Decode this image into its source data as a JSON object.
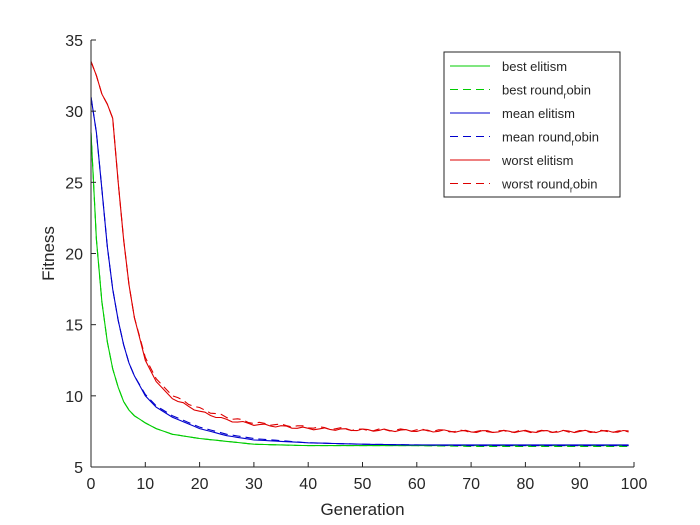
{
  "chart_data": {
    "type": "line",
    "title": "",
    "xlabel": "Generation",
    "ylabel": "Fitness",
    "xlim": [
      0,
      100
    ],
    "ylim": [
      5,
      35
    ],
    "grid": false,
    "legend_position": "top-right",
    "x_ticks": [
      {
        "value": 0,
        "label": "0"
      },
      {
        "value": 10,
        "label": "10"
      },
      {
        "value": 20,
        "label": "20"
      },
      {
        "value": 30,
        "label": "30"
      },
      {
        "value": 40,
        "label": "40"
      },
      {
        "value": 50,
        "label": "50"
      },
      {
        "value": 60,
        "label": "60"
      },
      {
        "value": 70,
        "label": "70"
      },
      {
        "value": 80,
        "label": "80"
      },
      {
        "value": 90,
        "label": "90"
      },
      {
        "value": 100,
        "label": "100"
      }
    ],
    "y_ticks": [
      {
        "value": 5,
        "label": "5"
      },
      {
        "value": 10,
        "label": "10"
      },
      {
        "value": 15,
        "label": "15"
      },
      {
        "value": 20,
        "label": "20"
      },
      {
        "value": 25,
        "label": "25"
      },
      {
        "value": 30,
        "label": "30"
      },
      {
        "value": 35,
        "label": "35"
      }
    ],
    "x": [
      0,
      1,
      2,
      3,
      4,
      5,
      6,
      7,
      8,
      10,
      12,
      15,
      20,
      25,
      30,
      40,
      50,
      60,
      70,
      80,
      90,
      99
    ],
    "series": [
      {
        "name": "best elitism",
        "label_main": "best elitism",
        "label_sub": "",
        "label_tail": "",
        "color": "#00cc00",
        "dash": "solid",
        "values": [
          28.5,
          21.0,
          16.6,
          13.8,
          11.9,
          10.6,
          9.6,
          9.0,
          8.6,
          8.1,
          7.7,
          7.3,
          7.0,
          6.8,
          6.6,
          6.5,
          6.5,
          6.5,
          6.5,
          6.5,
          6.5,
          6.5
        ]
      },
      {
        "name": "best round_robin",
        "label_main": "best round",
        "label_sub": "r",
        "label_tail": "obin",
        "color": "#00cc00",
        "dash": "dashed",
        "values": [
          28.5,
          21.0,
          16.6,
          13.8,
          11.9,
          10.6,
          9.6,
          9.0,
          8.6,
          8.1,
          7.7,
          7.3,
          7.0,
          6.8,
          6.6,
          6.5,
          6.5,
          6.5,
          6.45,
          6.45,
          6.45,
          6.45
        ]
      },
      {
        "name": "mean elitism",
        "label_main": "mean elitism",
        "label_sub": "",
        "label_tail": "",
        "color": "#0000cc",
        "dash": "solid",
        "values": [
          31.0,
          28.5,
          24.5,
          20.5,
          17.5,
          15.3,
          13.6,
          12.3,
          11.4,
          10.0,
          9.2,
          8.5,
          7.7,
          7.2,
          6.9,
          6.7,
          6.6,
          6.55,
          6.55,
          6.55,
          6.55,
          6.55
        ]
      },
      {
        "name": "mean round_robin",
        "label_main": "mean round",
        "label_sub": "r",
        "label_tail": "obin",
        "color": "#0000cc",
        "dash": "dashed",
        "values": [
          31.0,
          28.5,
          24.5,
          20.5,
          17.5,
          15.3,
          13.6,
          12.3,
          11.4,
          10.1,
          9.3,
          8.6,
          7.8,
          7.3,
          7.0,
          6.7,
          6.6,
          6.55,
          6.5,
          6.5,
          6.5,
          6.5
        ]
      },
      {
        "name": "worst elitism",
        "label_main": "worst elitism",
        "label_sub": "",
        "label_tail": "",
        "color": "#dd0000",
        "dash": "solid",
        "values": [
          33.5,
          32.5,
          31.2,
          30.5,
          29.5,
          25.0,
          21.0,
          17.8,
          15.5,
          12.5,
          11.0,
          9.8,
          8.9,
          8.3,
          8.0,
          7.7,
          7.6,
          7.55,
          7.5,
          7.5,
          7.5,
          7.5
        ]
      },
      {
        "name": "worst round_robin",
        "label_main": "worst round",
        "label_sub": "r",
        "label_tail": "obin",
        "color": "#dd0000",
        "dash": "dashed",
        "values": [
          33.5,
          32.5,
          31.2,
          30.5,
          29.5,
          25.0,
          21.0,
          17.8,
          15.5,
          12.7,
          11.2,
          10.0,
          9.1,
          8.5,
          8.1,
          7.8,
          7.6,
          7.6,
          7.5,
          7.5,
          7.5,
          7.5
        ]
      }
    ]
  }
}
